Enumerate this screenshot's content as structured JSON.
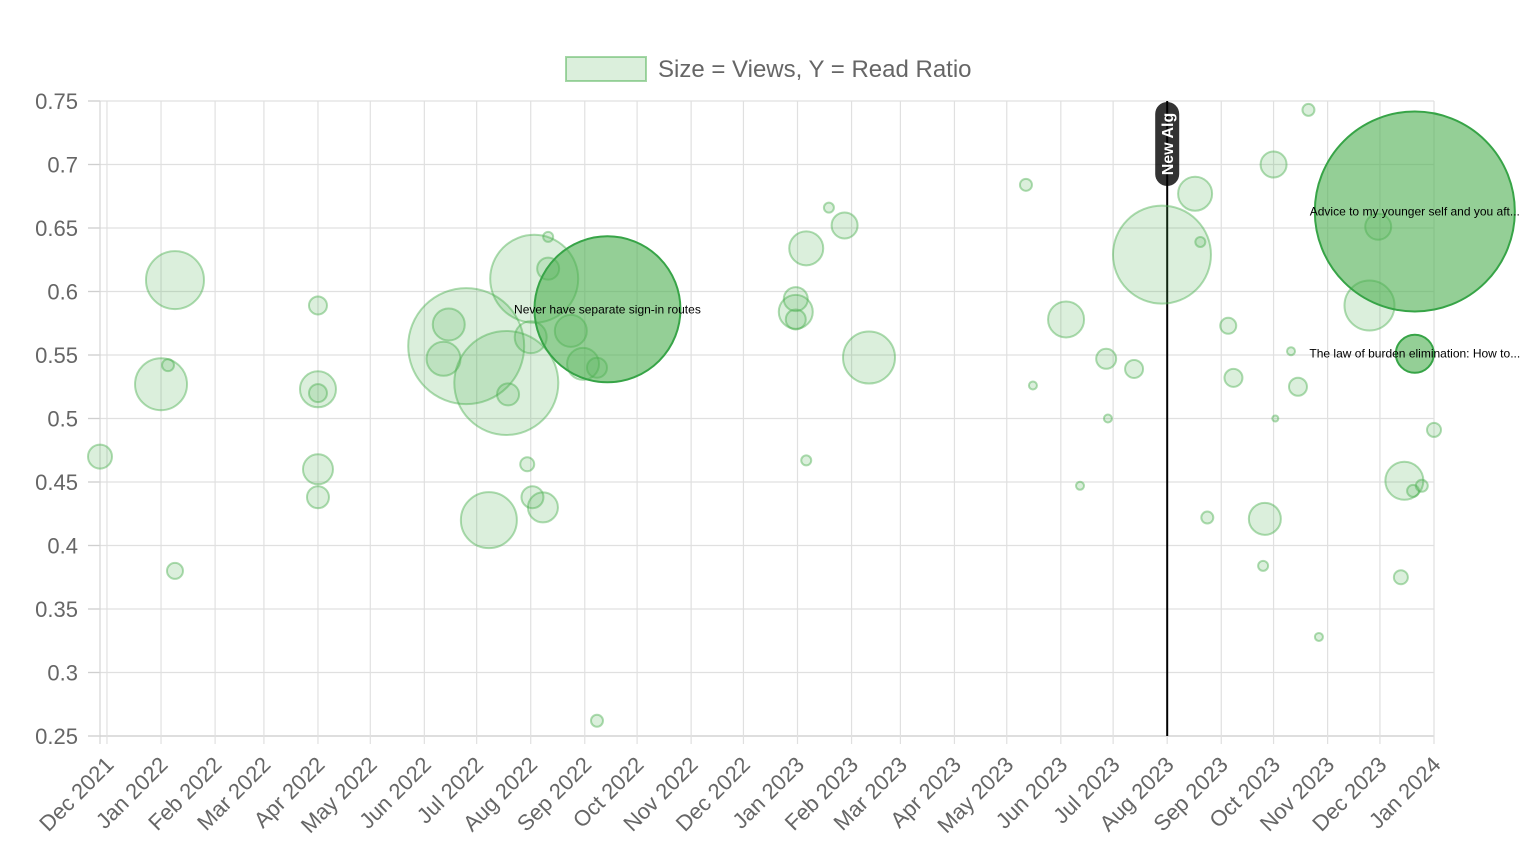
{
  "chart_data": {
    "type": "scatter",
    "legend": {
      "label": "Size = Views, Y = Read Ratio",
      "position": "top-center"
    },
    "x_axis": {
      "type": "time",
      "ticks": [
        "Dec 2021",
        "Jan 2022",
        "Feb 2022",
        "Mar 2022",
        "Apr 2022",
        "May 2022",
        "Jun 2022",
        "Jul 2022",
        "Aug 2022",
        "Sep 2022",
        "Oct 2022",
        "Nov 2022",
        "Dec 2022",
        "Jan 2023",
        "Feb 2023",
        "Mar 2023",
        "Apr 2023",
        "May 2023",
        "Jun 2023",
        "Jul 2023",
        "Aug 2023",
        "Sep 2023",
        "Oct 2023",
        "Nov 2023",
        "Dec 2023",
        "Jan 2024"
      ],
      "tick_dates": [
        "2021-12-01",
        "2022-01-01",
        "2022-02-01",
        "2022-03-01",
        "2022-04-01",
        "2022-05-01",
        "2022-06-01",
        "2022-07-01",
        "2022-08-01",
        "2022-09-01",
        "2022-10-01",
        "2022-11-01",
        "2022-12-01",
        "2023-01-01",
        "2023-02-01",
        "2023-03-01",
        "2023-04-01",
        "2023-05-01",
        "2023-06-01",
        "2023-07-01",
        "2023-08-01",
        "2023-09-01",
        "2023-10-01",
        "2023-11-01",
        "2023-12-01",
        "2024-01-01"
      ],
      "range": [
        "2021-11-27",
        "2024-01-01"
      ]
    },
    "y_axis": {
      "ticks": [
        "0.75",
        "0.7",
        "0.65",
        "0.6",
        "0.55",
        "0.5",
        "0.45",
        "0.4",
        "0.35",
        "0.3",
        "0.25"
      ],
      "ylim": [
        0.25,
        0.75
      ]
    },
    "grid": true,
    "annotation": {
      "label": "New Alg",
      "x": "2023-08-01"
    },
    "bubble_color": "#4caf50",
    "series": [
      {
        "points": [
          {
            "x": "2021-11-27",
            "y": 0.47,
            "r": 12
          },
          {
            "x": "2022-01-01",
            "y": 0.527,
            "r": 26
          },
          {
            "x": "2022-01-05",
            "y": 0.542,
            "r": 6
          },
          {
            "x": "2022-01-09",
            "y": 0.609,
            "r": 29
          },
          {
            "x": "2022-01-09",
            "y": 0.38,
            "r": 8
          },
          {
            "x": "2022-04-01",
            "y": 0.589,
            "r": 9
          },
          {
            "x": "2022-04-01",
            "y": 0.523,
            "r": 18
          },
          {
            "x": "2022-04-01",
            "y": 0.52,
            "r": 9
          },
          {
            "x": "2022-04-01",
            "y": 0.46,
            "r": 15
          },
          {
            "x": "2022-04-01",
            "y": 0.438,
            "r": 11
          },
          {
            "x": "2022-06-25",
            "y": 0.557,
            "r": 58
          },
          {
            "x": "2022-06-15",
            "y": 0.574,
            "r": 16
          },
          {
            "x": "2022-06-12",
            "y": 0.547,
            "r": 17
          },
          {
            "x": "2022-07-18",
            "y": 0.528,
            "r": 52
          },
          {
            "x": "2022-07-08",
            "y": 0.42,
            "r": 28
          },
          {
            "x": "2022-07-19",
            "y": 0.519,
            "r": 11
          },
          {
            "x": "2022-07-30",
            "y": 0.464,
            "r": 7
          },
          {
            "x": "2022-08-01",
            "y": 0.564,
            "r": 16
          },
          {
            "x": "2022-08-02",
            "y": 0.438,
            "r": 11
          },
          {
            "x": "2022-08-03",
            "y": 0.61,
            "r": 44
          },
          {
            "x": "2022-08-08",
            "y": 0.43,
            "r": 15
          },
          {
            "x": "2022-08-11",
            "y": 0.643,
            "r": 5
          },
          {
            "x": "2022-08-11",
            "y": 0.618,
            "r": 11
          },
          {
            "x": "2022-08-24",
            "y": 0.569,
            "r": 16
          },
          {
            "x": "2022-08-31",
            "y": 0.543,
            "r": 16
          },
          {
            "x": "2022-09-08",
            "y": 0.54,
            "r": 10
          },
          {
            "x": "2022-09-08",
            "y": 0.262,
            "r": 6
          },
          {
            "x": "2022-12-31",
            "y": 0.584,
            "r": 17
          },
          {
            "x": "2022-12-31",
            "y": 0.594,
            "r": 12
          },
          {
            "x": "2022-12-31",
            "y": 0.578,
            "r": 10
          },
          {
            "x": "2023-01-06",
            "y": 0.634,
            "r": 17
          },
          {
            "x": "2023-01-06",
            "y": 0.467,
            "r": 5
          },
          {
            "x": "2023-01-19",
            "y": 0.666,
            "r": 5
          },
          {
            "x": "2023-01-28",
            "y": 0.652,
            "r": 13
          },
          {
            "x": "2023-02-11",
            "y": 0.548,
            "r": 26
          },
          {
            "x": "2023-05-12",
            "y": 0.684,
            "r": 6
          },
          {
            "x": "2023-05-16",
            "y": 0.526,
            "r": 4
          },
          {
            "x": "2023-06-04",
            "y": 0.578,
            "r": 18
          },
          {
            "x": "2023-06-12",
            "y": 0.447,
            "r": 4
          },
          {
            "x": "2023-06-27",
            "y": 0.547,
            "r": 10
          },
          {
            "x": "2023-06-28",
            "y": 0.5,
            "r": 4
          },
          {
            "x": "2023-07-13",
            "y": 0.539,
            "r": 9
          },
          {
            "x": "2023-07-29",
            "y": 0.629,
            "r": 49
          },
          {
            "x": "2023-08-17",
            "y": 0.677,
            "r": 17
          },
          {
            "x": "2023-08-20",
            "y": 0.639,
            "r": 5
          },
          {
            "x": "2023-08-24",
            "y": 0.422,
            "r": 6
          },
          {
            "x": "2023-09-05",
            "y": 0.573,
            "r": 8
          },
          {
            "x": "2023-09-08",
            "y": 0.532,
            "r": 9
          },
          {
            "x": "2023-09-25",
            "y": 0.384,
            "r": 5
          },
          {
            "x": "2023-09-26",
            "y": 0.421,
            "r": 16
          },
          {
            "x": "2023-10-01",
            "y": 0.7,
            "r": 13
          },
          {
            "x": "2023-10-02",
            "y": 0.5,
            "r": 3
          },
          {
            "x": "2023-10-11",
            "y": 0.553,
            "r": 4
          },
          {
            "x": "2023-10-15",
            "y": 0.525,
            "r": 9
          },
          {
            "x": "2023-10-21",
            "y": 0.743,
            "r": 6
          },
          {
            "x": "2023-10-27",
            "y": 0.328,
            "r": 4
          },
          {
            "x": "2023-11-25",
            "y": 0.589,
            "r": 25
          },
          {
            "x": "2023-11-30",
            "y": 0.651,
            "r": 13
          },
          {
            "x": "2023-12-13",
            "y": 0.375,
            "r": 7
          },
          {
            "x": "2023-12-15",
            "y": 0.451,
            "r": 19
          },
          {
            "x": "2023-12-20",
            "y": 0.443,
            "r": 6
          },
          {
            "x": "2023-12-25",
            "y": 0.447,
            "r": 6
          },
          {
            "x": "2024-01-01",
            "y": 0.491,
            "r": 7
          }
        ]
      }
    ],
    "highlighted": [
      {
        "x": "2022-09-14",
        "y": 0.586,
        "r": 73,
        "label": "Never have separate sign-in routes"
      },
      {
        "x": "2023-12-21",
        "y": 0.663,
        "r": 100,
        "label": "Advice to my younger self and you aft..."
      },
      {
        "x": "2023-12-21",
        "y": 0.551,
        "r": 19,
        "label": "The law of burden elimination: How to..."
      }
    ]
  }
}
